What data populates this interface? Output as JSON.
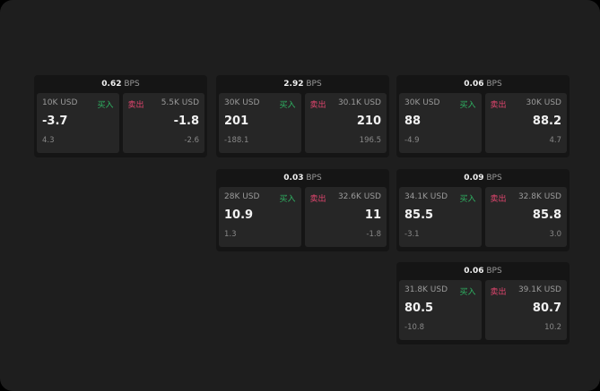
{
  "colors": {
    "buy": "#2fb463",
    "sell": "#e0456e"
  },
  "bps_label": "BPS",
  "buy_label": "买入",
  "sell_label": "卖出",
  "cards": [
    {
      "bps": "0.62",
      "buy": {
        "size": "10K USD",
        "price": "-3.7",
        "change": "4.3"
      },
      "sell": {
        "size": "5.5K USD",
        "price": "-1.8",
        "change": "-2.6"
      }
    },
    {
      "bps": "2.92",
      "buy": {
        "size": "30K USD",
        "price": "201",
        "change": "-188.1"
      },
      "sell": {
        "size": "30.1K USD",
        "price": "210",
        "change": "196.5"
      }
    },
    {
      "bps": "0.06",
      "buy": {
        "size": "30K USD",
        "price": "88",
        "change": "-4.9"
      },
      "sell": {
        "size": "30K USD",
        "price": "88.2",
        "change": "4.7"
      }
    },
    {
      "bps": "0.03",
      "buy": {
        "size": "28K USD",
        "price": "10.9",
        "change": "1.3"
      },
      "sell": {
        "size": "32.6K USD",
        "price": "11",
        "change": "-1.8"
      }
    },
    {
      "bps": "0.09",
      "buy": {
        "size": "34.1K USD",
        "price": "85.5",
        "change": "-3.1"
      },
      "sell": {
        "size": "32.8K USD",
        "price": "85.8",
        "change": "3.0"
      }
    },
    {
      "bps": "0.06",
      "buy": {
        "size": "31.8K USD",
        "price": "80.5",
        "change": "-10.8"
      },
      "sell": {
        "size": "39.1K USD",
        "price": "80.7",
        "change": "10.2"
      }
    }
  ]
}
